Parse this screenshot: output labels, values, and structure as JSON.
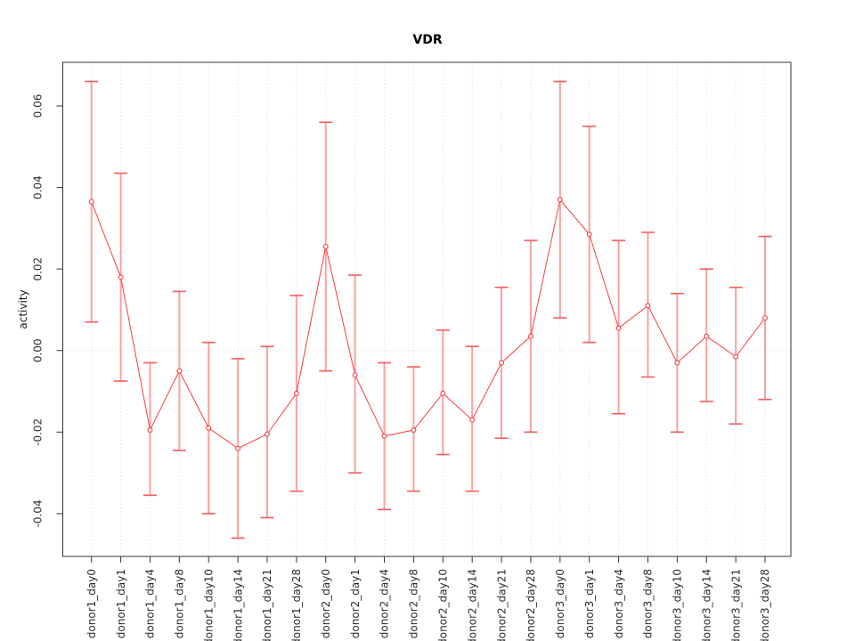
{
  "figure": {
    "title": "VDR"
  },
  "chart_data": {
    "type": "line",
    "title": "VDR",
    "xlabel": "",
    "ylabel": "activity",
    "categories": [
      "donor1_day0",
      "donor1_day1",
      "donor1_day4",
      "donor1_day8",
      "donor1_day10",
      "donor1_day14",
      "donor1_day21",
      "donor1_day28",
      "donor2_day0",
      "donor2_day1",
      "donor2_day4",
      "donor2_day8",
      "donor2_day10",
      "donor2_day14",
      "donor2_day21",
      "donor2_day28",
      "donor3_day0",
      "donor3_day1",
      "donor3_day4",
      "donor3_day8",
      "donor3_day10",
      "donor3_day14",
      "donor3_day21",
      "donor3_day28"
    ],
    "series": [
      {
        "name": "VDR activity",
        "values": [
          0.0365,
          0.018,
          -0.0195,
          -0.005,
          -0.019,
          -0.024,
          -0.0205,
          -0.0105,
          0.0255,
          -0.006,
          -0.021,
          -0.0195,
          -0.0105,
          -0.017,
          -0.003,
          0.0035,
          0.037,
          0.0285,
          0.0055,
          0.011,
          -0.003,
          0.0035,
          -0.0015,
          0.008
        ],
        "ci_upper": [
          0.066,
          0.0435,
          -0.003,
          0.0145,
          0.002,
          -0.002,
          0.001,
          0.0135,
          0.056,
          0.0185,
          -0.003,
          -0.004,
          0.005,
          0.001,
          0.0155,
          0.027,
          0.066,
          0.055,
          0.027,
          0.029,
          0.014,
          0.02,
          0.0155,
          0.028
        ],
        "ci_lower": [
          0.007,
          -0.0075,
          -0.0355,
          -0.0245,
          -0.04,
          -0.046,
          -0.041,
          -0.0345,
          -0.005,
          -0.03,
          -0.039,
          -0.0345,
          -0.0255,
          -0.0345,
          -0.0215,
          -0.02,
          0.008,
          0.002,
          -0.0155,
          -0.0065,
          -0.02,
          -0.0125,
          -0.018,
          -0.012
        ]
      }
    ],
    "yticks": [
      -0.04,
      -0.02,
      0.0,
      0.02,
      0.04,
      0.06
    ],
    "ytick_labels": [
      "-0.04",
      "-0.02",
      "0.00",
      "0.02",
      "0.04",
      "0.06"
    ],
    "ylim": [
      -0.0505,
      0.0707
    ],
    "grid": {
      "vertical_gridlines": "dotted, one per category",
      "horizontal_gridlines": "dotted line at zero only"
    },
    "legend": "none",
    "marker": "open-circle",
    "error_bars": true,
    "colors": {
      "line": "#f53d3d",
      "marker": "#f53d3d",
      "error_bar": "#f9a1a1",
      "error_cap": "#f75b5b",
      "grid": "#dcdcdc",
      "zero_line": "#d8d8d8",
      "axis": "#333333",
      "tick_label": "#2b2b2b",
      "background": "#ffffff"
    }
  }
}
